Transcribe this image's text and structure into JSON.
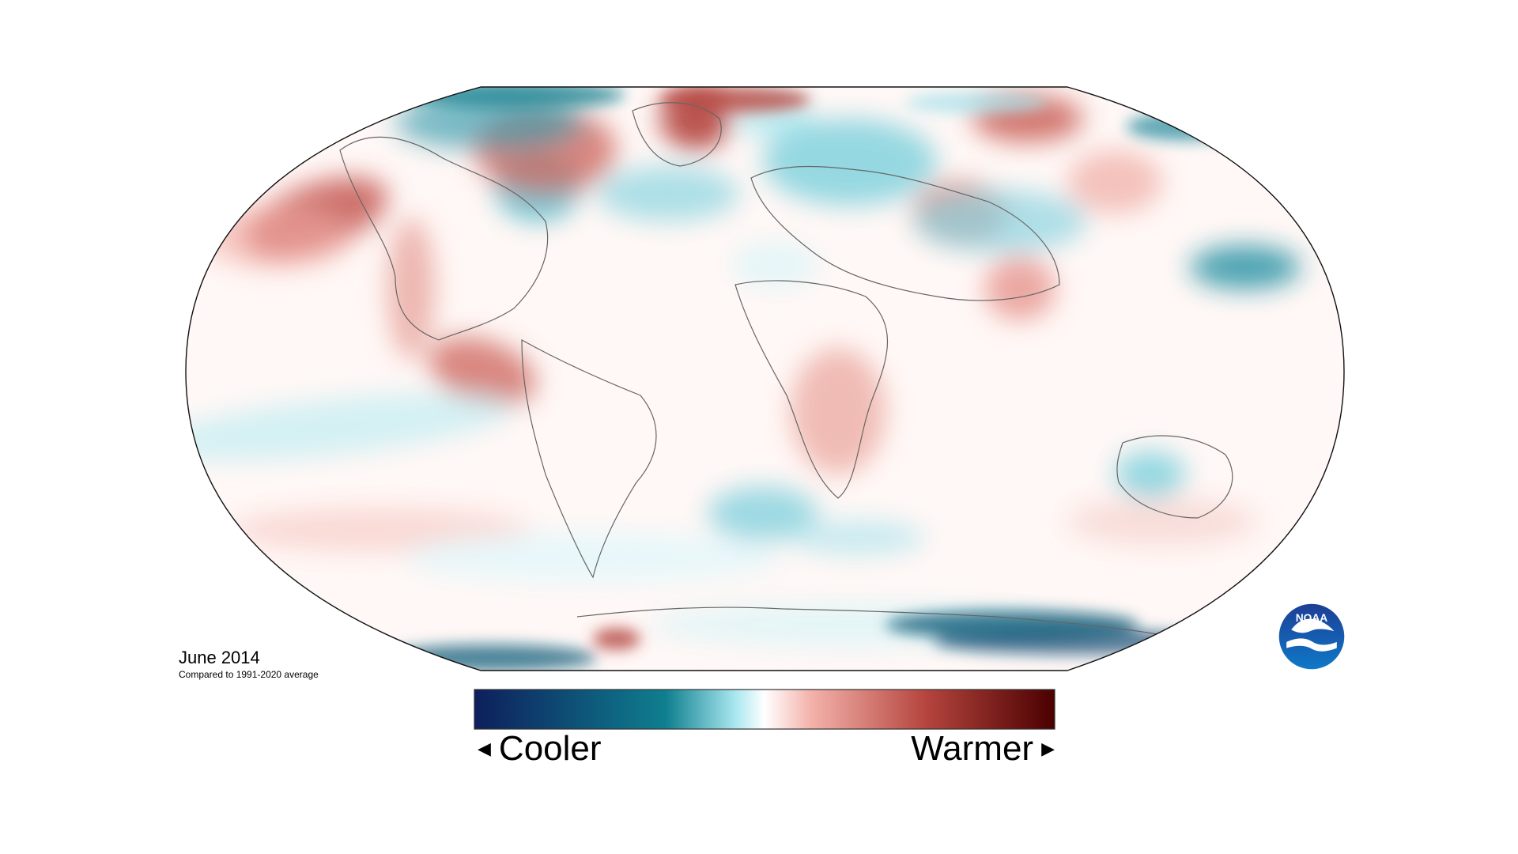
{
  "legend": {
    "date_label": "June 2014",
    "comparison_label": "Compared to 1991-2020 average",
    "cooler_label": "Cooler",
    "warmer_label": "Warmer"
  },
  "colors": {
    "cold_extreme": "#0d1f5c",
    "cold_mid": "#0f7f8f",
    "cold_light": "#a9e7ef",
    "neutral": "#ffffff",
    "warm_light": "#f3b2aa",
    "warm_mid": "#b4443d",
    "warm_extreme": "#4a0000"
  },
  "logo": {
    "text": "NOAA",
    "icon": "noaa-logo-icon"
  }
}
